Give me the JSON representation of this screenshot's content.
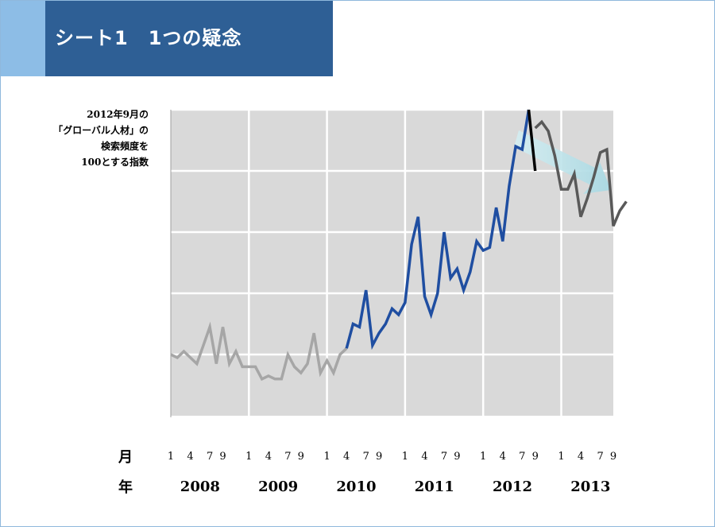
{
  "slide": {
    "title": "シート1　1つの疑念"
  },
  "chart_data": {
    "type": "line",
    "ylabel_lines": [
      "2012年9月の",
      "「グローバル人材」の",
      "検索頻度を",
      "100とする指数"
    ],
    "row_labels": {
      "month": "月",
      "year": "年"
    },
    "month_ticks": [
      "1",
      "4",
      "7",
      "9",
      "1",
      "4",
      "7",
      "9",
      "1",
      "4",
      "7",
      "9",
      "1",
      "4",
      "7",
      "9",
      "1",
      "4",
      "7",
      "9",
      "1",
      "4",
      "7",
      "9"
    ],
    "year_ticks": [
      "2008",
      "2009",
      "2010",
      "2011",
      "2012",
      "2013"
    ],
    "ylim": [
      0,
      100
    ],
    "grid": true,
    "series": [
      {
        "color": "#a6a6a6",
        "start_month": 1,
        "values": [
          20,
          19,
          21,
          19,
          17,
          23,
          29,
          17,
          29,
          17,
          21,
          16,
          16,
          16,
          12,
          13,
          12,
          12,
          20,
          16,
          14,
          17,
          27,
          14,
          18,
          14,
          20,
          22
        ]
      },
      {
        "color": "#1f4ea1",
        "start_month": 28,
        "values": [
          22,
          30,
          29,
          41,
          23,
          27,
          30,
          35,
          33,
          37,
          56,
          65,
          39,
          33,
          40,
          60,
          45,
          48,
          41,
          47,
          57,
          54,
          55,
          68,
          57,
          75,
          88,
          87,
          100
        ]
      },
      {
        "color": "#000000",
        "start_month": 56,
        "values": [
          100,
          80
        ]
      },
      {
        "color": "#595959",
        "start_month": 57,
        "values": [
          94,
          96,
          93,
          85,
          74,
          74,
          79,
          65,
          71,
          78,
          86,
          87,
          62,
          67,
          70
        ]
      }
    ],
    "annotation": {
      "type": "arrow",
      "label": "",
      "color": "#b4dfe6"
    }
  }
}
